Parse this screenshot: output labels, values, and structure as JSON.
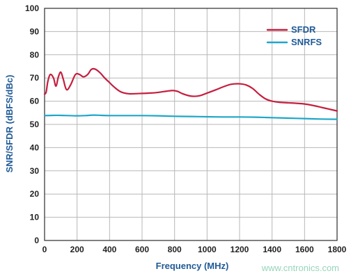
{
  "chart_data": {
    "type": "line",
    "title": "",
    "xlabel": "Frequency (MHz)",
    "ylabel": "SNR/SFDR (dBFS/dBc)",
    "xlim": [
      0,
      1800
    ],
    "ylim": [
      0,
      100
    ],
    "xticks": [
      0,
      200,
      400,
      600,
      800,
      1000,
      1200,
      1400,
      1600,
      1800
    ],
    "yticks": [
      0,
      10,
      20,
      30,
      40,
      50,
      60,
      70,
      80,
      90,
      100
    ],
    "grid": true,
    "legend_position": "top-right",
    "series": [
      {
        "name": "SFDR",
        "color": "#c41f3e",
        "x": [
          0,
          10,
          20,
          35,
          55,
          70,
          85,
          100,
          115,
          135,
          160,
          190,
          215,
          240,
          265,
          285,
          300,
          320,
          345,
          370,
          400,
          430,
          470,
          520,
          580,
          650,
          700,
          750,
          790,
          820,
          850,
          900,
          950,
          1000,
          1050,
          1100,
          1150,
          1200,
          1240,
          1280,
          1320,
          1360,
          1400,
          1450,
          1500,
          1550,
          1600,
          1650,
          1700,
          1750,
          1800
        ],
        "y": [
          63,
          64,
          68.5,
          71.5,
          70,
          66.5,
          70.5,
          72.5,
          69.5,
          65,
          67,
          71.5,
          71.5,
          70.5,
          71.5,
          73.5,
          74,
          73.5,
          72,
          70,
          68,
          66,
          64,
          63.2,
          63.3,
          63.5,
          63.8,
          64.3,
          64.6,
          64.2,
          63.2,
          62.2,
          62.3,
          63.5,
          64.8,
          66.2,
          67.3,
          67.5,
          67,
          65.5,
          63,
          61,
          60,
          59.5,
          59.3,
          59.1,
          58.8,
          58.2,
          57.4,
          56.6,
          55.8
        ]
      },
      {
        "name": "SNRFS",
        "color": "#1ea6c8",
        "x": [
          0,
          50,
          100,
          150,
          200,
          250,
          300,
          350,
          400,
          500,
          600,
          700,
          800,
          900,
          1000,
          1100,
          1200,
          1300,
          1400,
          1500,
          1600,
          1700,
          1800
        ],
        "y": [
          53.8,
          53.9,
          53.9,
          53.8,
          53.7,
          53.8,
          54.0,
          53.9,
          53.8,
          53.8,
          53.8,
          53.7,
          53.5,
          53.4,
          53.3,
          53.2,
          53.2,
          53.1,
          52.9,
          52.7,
          52.5,
          52.3,
          52.2
        ]
      }
    ]
  },
  "watermark": "www.cntronics.com"
}
